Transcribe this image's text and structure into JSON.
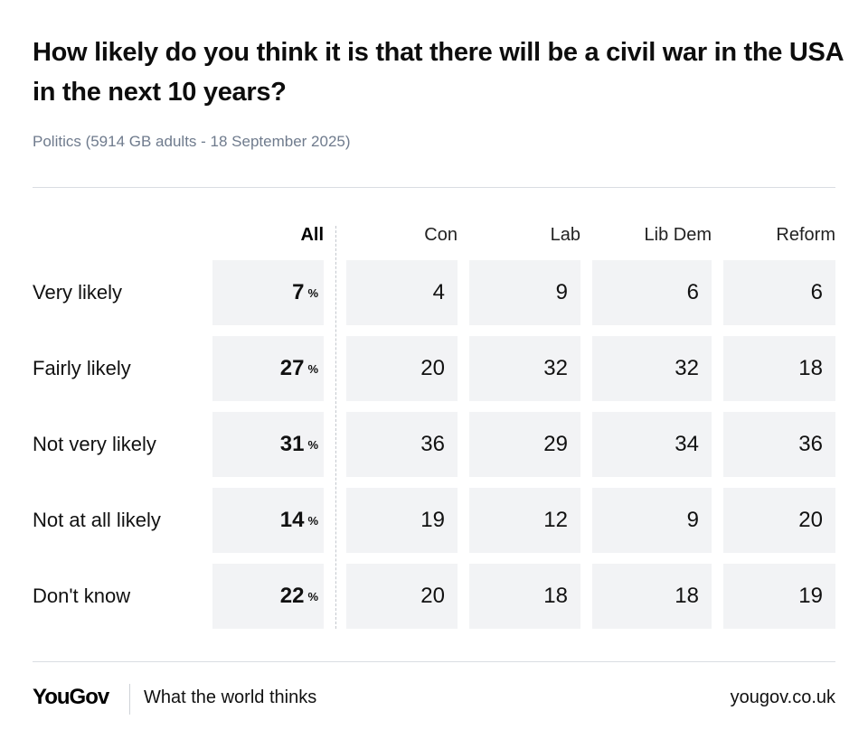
{
  "header": {
    "title": "How likely do you think it is that there will be a civil war in the USA in the next 10 years?",
    "subtitle": "Politics (5914 GB adults - 18 September 2025)"
  },
  "chart_data": {
    "type": "table",
    "columns": [
      "All",
      "Con",
      "Lab",
      "Lib Dem",
      "Reform"
    ],
    "rows": [
      {
        "label": "Very likely",
        "all": "7",
        "values": [
          "4",
          "9",
          "6",
          "6"
        ]
      },
      {
        "label": "Fairly likely",
        "all": "27",
        "values": [
          "20",
          "32",
          "32",
          "18"
        ]
      },
      {
        "label": "Not very likely",
        "all": "31",
        "values": [
          "36",
          "29",
          "34",
          "36"
        ]
      },
      {
        "label": "Not at all likely",
        "all": "14",
        "values": [
          "19",
          "12",
          "9",
          "20"
        ]
      },
      {
        "label": "Don't know",
        "all": "22",
        "values": [
          "20",
          "18",
          "18",
          "19"
        ]
      }
    ],
    "percent_sign": "%"
  },
  "footer": {
    "logo": "YouGov",
    "tagline": "What the world thinks",
    "url": "yougov.co.uk"
  }
}
